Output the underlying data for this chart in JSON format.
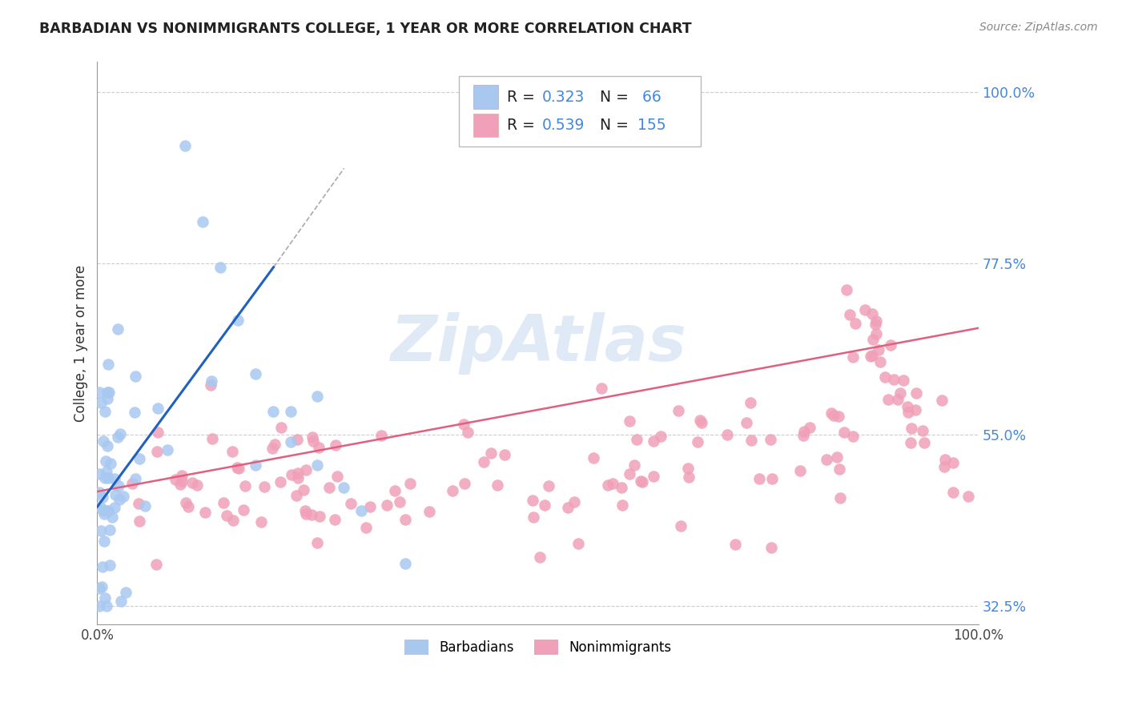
{
  "title": "BARBADIAN VS NONIMMIGRANTS COLLEGE, 1 YEAR OR MORE CORRELATION CHART",
  "source_text": "Source: ZipAtlas.com",
  "ylabel": "College, 1 year or more",
  "xlabel": "",
  "xlim": [
    0.0,
    1.0
  ],
  "ylim": [
    0.3,
    1.04
  ],
  "ytick_positions": [
    0.325,
    0.55,
    0.775,
    1.0
  ],
  "ytick_labels": [
    "32.5%",
    "55.0%",
    "77.5%",
    "100.0%"
  ],
  "xtick_positions": [
    0.0,
    1.0
  ],
  "xtick_labels": [
    "0.0%",
    "100.0%"
  ],
  "grid_color": "#c8c8c8",
  "background_color": "#ffffff",
  "blue_color": "#a8c8f0",
  "pink_color": "#f0a0b8",
  "blue_line_color": "#2060c0",
  "pink_line_color": "#e06080",
  "legend_R1": "0.323",
  "legend_N1": "66",
  "legend_R2": "0.539",
  "legend_N2": "155",
  "legend_label1": "Barbadians",
  "legend_label2": "Nonimmigrants",
  "watermark": "ZipAtlas",
  "blue_value_color": "#4488dd",
  "ytick_color": "#4488dd",
  "title_color": "#222222",
  "source_color": "#888888"
}
